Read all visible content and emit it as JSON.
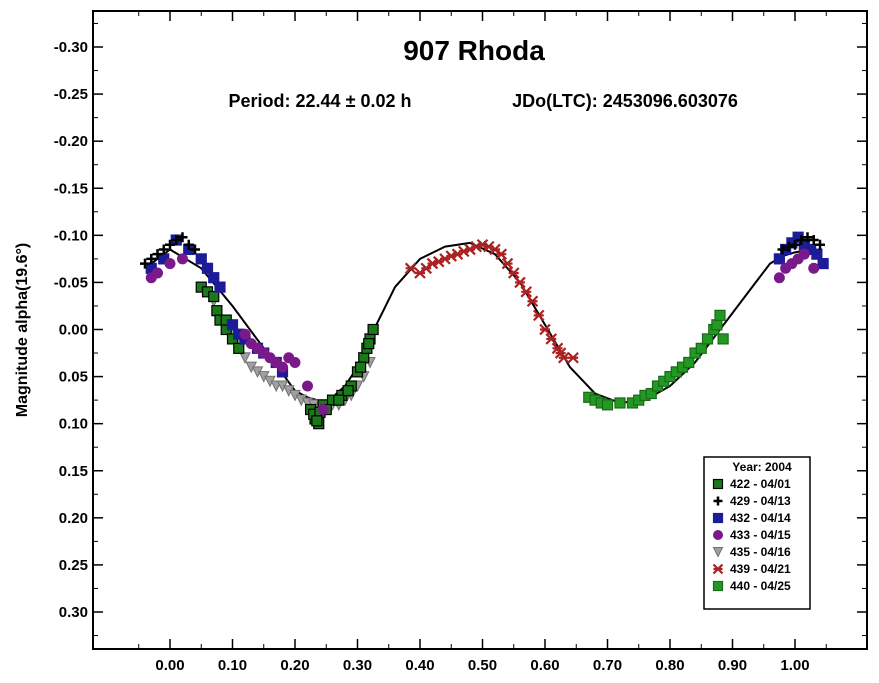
{
  "chart_data": {
    "type": "scatter",
    "title": "907 Rhoda",
    "subtitle_period": "Period: 22.44 ± 0.02 h",
    "subtitle_jdo": "JDo(LTC): 2453096.603076",
    "xlabel": "",
    "ylabel": "Magnitude alpha(19.6°)",
    "xlim": [
      -0.12,
      1.12
    ],
    "ylim": [
      -0.34,
      0.34
    ],
    "y_inverted": true,
    "x_ticks": [
      "0.00",
      "0.10",
      "0.20",
      "0.30",
      "0.40",
      "0.50",
      "0.60",
      "0.70",
      "0.80",
      "0.90",
      "1.00"
    ],
    "x_tick_values": [
      0.0,
      0.1,
      0.2,
      0.3,
      0.4,
      0.5,
      0.6,
      0.7,
      0.8,
      0.9,
      1.0
    ],
    "y_ticks": [
      "-0.30",
      "-0.25",
      "-0.20",
      "-0.15",
      "-0.10",
      "-0.05",
      "0.00",
      "0.05",
      "0.10",
      "0.15",
      "0.20",
      "0.25",
      "0.30"
    ],
    "y_tick_values": [
      -0.3,
      -0.25,
      -0.2,
      -0.15,
      -0.1,
      -0.05,
      0.0,
      0.05,
      0.1,
      0.15,
      0.2,
      0.25,
      0.3
    ],
    "legend": {
      "title": "Year: 2004",
      "placement": "bottom-right",
      "entries": [
        {
          "label": "422 - 04/01",
          "marker": "square",
          "color": "#1a7a1a",
          "stroke": "#000000"
        },
        {
          "label": "429 - 04/13",
          "marker": "plus",
          "color": "#000000",
          "stroke": "#000000"
        },
        {
          "label": "432 - 04/14",
          "marker": "square",
          "color": "#1c1c99",
          "stroke": "#1c1c99"
        },
        {
          "label": "433 - 04/15",
          "marker": "circle",
          "color": "#7a1a8a",
          "stroke": "#7a1a8a"
        },
        {
          "label": "435 - 04/16",
          "marker": "triangle",
          "color": "#a0a0a0",
          "stroke": "#707070"
        },
        {
          "label": "439 - 04/21",
          "marker": "x",
          "color": "#aa2222",
          "stroke": "#aa2222"
        },
        {
          "label": "440 - 04/25",
          "marker": "square",
          "color": "#229922",
          "stroke": "#1a6a1a"
        }
      ]
    },
    "fit_curve": {
      "x": [
        -0.03,
        0.0,
        0.05,
        0.1,
        0.15,
        0.2,
        0.22,
        0.25,
        0.28,
        0.3,
        0.33,
        0.36,
        0.4,
        0.44,
        0.48,
        0.52,
        0.56,
        0.6,
        0.64,
        0.68,
        0.72,
        0.76,
        0.8,
        0.84,
        0.88,
        0.92,
        0.96,
        0.98,
        1.0,
        1.03
      ],
      "y": [
        -0.07,
        -0.085,
        -0.065,
        -0.025,
        0.02,
        0.065,
        0.072,
        0.078,
        0.06,
        0.04,
        -0.005,
        -0.045,
        -0.075,
        -0.088,
        -0.092,
        -0.08,
        -0.05,
        -0.005,
        0.04,
        0.068,
        0.078,
        0.075,
        0.06,
        0.035,
        0.0,
        -0.035,
        -0.07,
        -0.078,
        -0.082,
        -0.085
      ]
    },
    "series": [
      {
        "name": "422 - 04/01",
        "x": [
          0.225,
          0.232,
          0.238,
          0.245,
          0.26,
          0.275,
          0.29,
          0.3,
          0.31,
          0.315,
          0.32,
          0.325,
          0.23,
          0.24,
          0.285,
          0.305,
          0.318,
          0.235,
          0.25,
          0.27,
          0.05,
          0.06,
          0.07,
          0.075,
          0.08,
          0.09,
          0.1,
          0.11,
          0.09
        ],
        "y": [
          0.085,
          0.095,
          0.1,
          0.08,
          0.075,
          0.07,
          0.06,
          0.045,
          0.03,
          0.02,
          0.01,
          0.0,
          0.09,
          0.088,
          0.065,
          0.04,
          0.015,
          0.097,
          0.085,
          0.075,
          -0.045,
          -0.04,
          -0.035,
          -0.02,
          -0.01,
          0.0,
          0.01,
          0.02,
          -0.01
        ]
      },
      {
        "name": "429 - 04/13",
        "x": [
          -0.04,
          -0.03,
          -0.02,
          -0.01,
          0.0,
          0.01,
          0.02,
          0.03,
          0.04,
          1.0,
          1.01,
          1.02,
          1.03,
          1.04,
          0.99,
          0.98
        ],
        "y": [
          -0.07,
          -0.075,
          -0.08,
          -0.085,
          -0.09,
          -0.095,
          -0.098,
          -0.09,
          -0.085,
          -0.09,
          -0.095,
          -0.098,
          -0.095,
          -0.09,
          -0.088,
          -0.085
        ]
      },
      {
        "name": "432 - 04/14",
        "x": [
          -0.03,
          -0.01,
          0.01,
          0.03,
          0.05,
          0.06,
          0.07,
          0.08,
          0.1,
          0.11,
          0.12,
          0.14,
          0.15,
          0.17,
          0.18,
          0.975,
          0.985,
          0.995,
          1.005,
          1.015,
          1.025,
          1.035,
          1.045
        ],
        "y": [
          -0.065,
          -0.075,
          -0.095,
          -0.085,
          -0.075,
          -0.065,
          -0.055,
          -0.045,
          -0.005,
          0.005,
          0.01,
          0.02,
          0.025,
          0.035,
          0.045,
          -0.075,
          -0.085,
          -0.092,
          -0.098,
          -0.09,
          -0.085,
          -0.08,
          -0.07
        ]
      },
      {
        "name": "433 - 04/15",
        "x": [
          -0.03,
          -0.02,
          0.0,
          0.02,
          0.12,
          0.13,
          0.14,
          0.15,
          0.16,
          0.17,
          0.18,
          0.19,
          0.2,
          0.22,
          0.245,
          0.975,
          0.985,
          0.995,
          1.005,
          1.015,
          1.03
        ],
        "y": [
          -0.055,
          -0.06,
          -0.07,
          -0.075,
          0.005,
          0.015,
          0.02,
          0.025,
          0.03,
          0.035,
          0.04,
          0.03,
          0.035,
          0.06,
          0.085,
          -0.055,
          -0.065,
          -0.07,
          -0.075,
          -0.08,
          -0.065
        ]
      },
      {
        "name": "435 - 04/16",
        "x": [
          0.07,
          0.09,
          0.1,
          0.11,
          0.12,
          0.13,
          0.14,
          0.15,
          0.16,
          0.17,
          0.18,
          0.19,
          0.2,
          0.21,
          0.22,
          0.23,
          0.24,
          0.25,
          0.26,
          0.27,
          0.28,
          0.29,
          0.3,
          0.31,
          0.32
        ],
        "y": [
          -0.03,
          -0.01,
          0.005,
          0.015,
          0.03,
          0.04,
          0.045,
          0.05,
          0.055,
          0.06,
          0.06,
          0.065,
          0.07,
          0.075,
          0.078,
          0.08,
          0.085,
          0.085,
          0.08,
          0.08,
          0.075,
          0.07,
          0.06,
          0.05,
          0.035
        ]
      },
      {
        "name": "439 - 04/21",
        "x": [
          0.385,
          0.4,
          0.41,
          0.42,
          0.43,
          0.44,
          0.45,
          0.46,
          0.47,
          0.48,
          0.49,
          0.5,
          0.51,
          0.52,
          0.53,
          0.54,
          0.55,
          0.56,
          0.57,
          0.58,
          0.59,
          0.6,
          0.61,
          0.62,
          0.625,
          0.63,
          0.645
        ],
        "y": [
          -0.065,
          -0.06,
          -0.065,
          -0.07,
          -0.072,
          -0.075,
          -0.078,
          -0.08,
          -0.083,
          -0.085,
          -0.088,
          -0.09,
          -0.088,
          -0.085,
          -0.08,
          -0.07,
          -0.06,
          -0.05,
          -0.04,
          -0.03,
          -0.015,
          0.0,
          0.01,
          0.02,
          0.025,
          0.03,
          0.03
        ]
      },
      {
        "name": "440 - 04/25",
        "x": [
          0.67,
          0.68,
          0.69,
          0.7,
          0.72,
          0.74,
          0.75,
          0.76,
          0.77,
          0.78,
          0.79,
          0.8,
          0.81,
          0.82,
          0.83,
          0.84,
          0.85,
          0.86,
          0.87,
          0.875,
          0.88,
          0.885
        ],
        "y": [
          0.072,
          0.075,
          0.078,
          0.08,
          0.078,
          0.078,
          0.075,
          0.07,
          0.068,
          0.06,
          0.055,
          0.05,
          0.045,
          0.04,
          0.035,
          0.025,
          0.02,
          0.01,
          0.0,
          -0.005,
          -0.015,
          0.01
        ]
      }
    ]
  }
}
